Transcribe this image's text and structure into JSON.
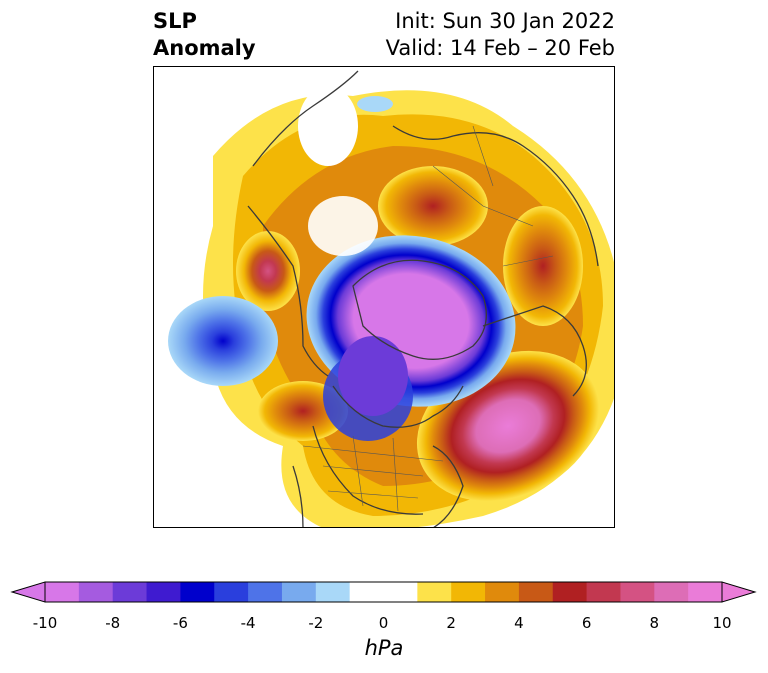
{
  "title": {
    "variable": "SLP",
    "kind": "Anomaly",
    "init": "Init: Sun 30 Jan 2022",
    "valid": "Valid: 14 Feb – 20 Feb"
  },
  "map": {
    "projection": "north-polar-stereographic",
    "field": "sea level pressure anomaly"
  },
  "colorbar": {
    "unit": "hPa",
    "ticks": [
      "-10",
      "-8",
      "-6",
      "-4",
      "-2",
      "0",
      "2",
      "4",
      "6",
      "8",
      "10"
    ],
    "colors": [
      "#d777e8",
      "#a55be0",
      "#6c3bd8",
      "#3f1bd0",
      "#0000cc",
      "#2a3fdd",
      "#4e73e8",
      "#78aaee",
      "#a9d8f8",
      "#ffffff",
      "#ffffff",
      "#fde24a",
      "#f2b705",
      "#e08a0c",
      "#c85916",
      "#b02022",
      "#c23850",
      "#d45283",
      "#dd6db6",
      "#ea7cd8"
    ],
    "extend": "both"
  }
}
